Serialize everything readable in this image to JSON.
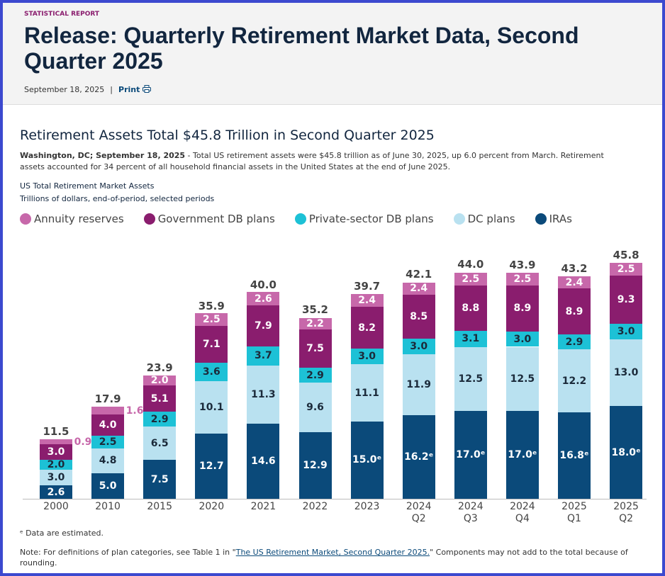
{
  "header": {
    "kicker": "STATISTICAL REPORT",
    "title": "Release: Quarterly Retirement Market Data, Second Quarter 2025",
    "date": "September 18, 2025",
    "separator": "|",
    "print": "Print"
  },
  "article": {
    "heading": "Retirement Assets Total $45.8 Trillion in Second Quarter 2025",
    "dateline": "Washington, DC; September 18, 2025",
    "body": " - Total US retirement assets were $45.8 trillion as of June 30, 2025, up 6.0 percent from March. Retirement assets accounted for 34 percent of all household financial assets in the United States at the end of June 2025.",
    "footnote": "ᵉ Data are estimated.",
    "note_before": "Note: For definitions of plan categories, see Table 1 in \"",
    "note_link": "The US Retirement Market, Second Quarter 2025.",
    "note_after": "\" Components may not add to the total because of rounding."
  },
  "chart_data": {
    "type": "stacked-bar",
    "title": "US Total Retirement Market Assets",
    "subtitle": "Trillions of dollars, end-of-period, selected periods",
    "categories": [
      "2000",
      "2010",
      "2015",
      "2020",
      "2021",
      "2022",
      "2023",
      "2024 Q2",
      "2024 Q3",
      "2024 Q4",
      "2025 Q1",
      "2025 Q2"
    ],
    "series": [
      {
        "name": "IRAs",
        "color": "#0b4a7a",
        "values": [
          2.6,
          5.0,
          7.5,
          12.7,
          14.6,
          12.9,
          15.0,
          16.2,
          17.0,
          17.0,
          16.8,
          18.0
        ],
        "value_labels": [
          "2.6",
          "5.0",
          "7.5",
          "12.7",
          "14.6",
          "12.9",
          "15.0ᵉ",
          "16.2ᵉ",
          "17.0ᵉ",
          "17.0ᵉ",
          "16.8ᵉ",
          "18.0ᵉ"
        ]
      },
      {
        "name": "DC plans",
        "color": "#b9e1f0",
        "values": [
          3.0,
          4.8,
          6.5,
          10.1,
          11.3,
          9.6,
          11.1,
          11.9,
          12.5,
          12.5,
          12.2,
          13.0
        ],
        "value_labels": [
          "3.0",
          "4.8",
          "6.5",
          "10.1",
          "11.3",
          "9.6",
          "11.1",
          "11.9",
          "12.5",
          "12.5",
          "12.2",
          "13.0"
        ]
      },
      {
        "name": "Private-sector DB plans",
        "color": "#1dc1d6",
        "values": [
          2.0,
          2.5,
          2.9,
          3.6,
          3.7,
          2.9,
          3.0,
          3.0,
          3.1,
          3.0,
          2.9,
          3.0
        ],
        "value_labels": [
          "2.0",
          "2.5",
          "2.9",
          "3.6",
          "3.7",
          "2.9",
          "3.0",
          "3.0",
          "3.1",
          "3.0",
          "2.9",
          "3.0"
        ]
      },
      {
        "name": "Government DB plans",
        "color": "#8a1d6e",
        "values": [
          3.0,
          4.0,
          5.1,
          7.1,
          7.9,
          7.5,
          8.2,
          8.5,
          8.8,
          8.9,
          8.9,
          9.3
        ],
        "value_labels": [
          "3.0",
          "4.0",
          "5.1",
          "7.1",
          "7.9",
          "7.5",
          "8.2",
          "8.5",
          "8.8",
          "8.9",
          "8.9",
          "9.3"
        ]
      },
      {
        "name": "Annuity reserves",
        "color": "#c768aa",
        "values": [
          0.9,
          1.6,
          2.0,
          2.5,
          2.6,
          2.2,
          2.4,
          2.4,
          2.5,
          2.5,
          2.4,
          2.5
        ],
        "value_labels": [
          "0.9",
          "1.6",
          "2.0",
          "2.5",
          "2.6",
          "2.2",
          "2.4",
          "2.4",
          "2.5",
          "2.5",
          "2.4",
          "2.5"
        ]
      }
    ],
    "totals": [
      11.5,
      17.9,
      23.9,
      35.9,
      40.0,
      35.2,
      39.7,
      42.1,
      44.0,
      43.9,
      43.2,
      45.8
    ],
    "total_labels": [
      "11.5",
      "17.9",
      "23.9",
      "35.9",
      "40.0",
      "35.2",
      "39.7",
      "42.1",
      "44.0",
      "43.9",
      "43.2",
      "45.8"
    ],
    "legend_order": [
      4,
      3,
      2,
      1,
      0
    ]
  }
}
